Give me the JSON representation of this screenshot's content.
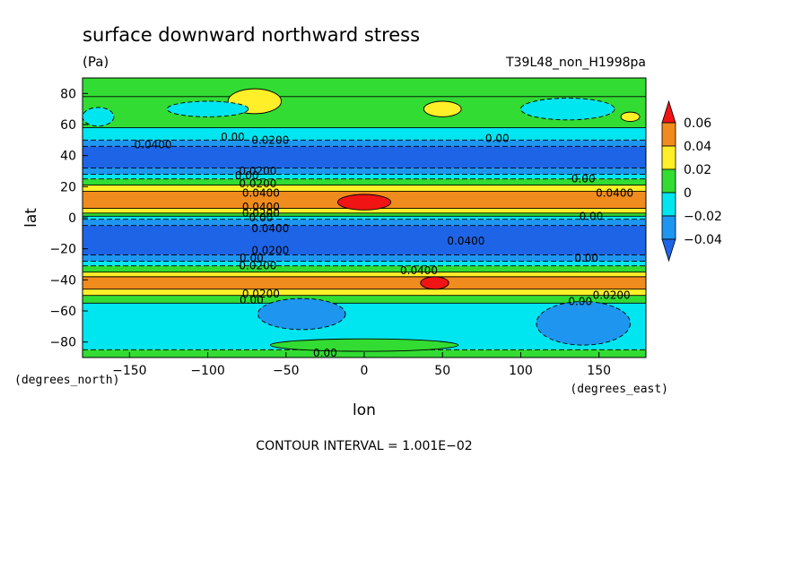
{
  "chart_data": {
    "type": "heatmap",
    "title": "surface downward northward stress",
    "units": "(Pa)",
    "run_label": "T39L48_non_H1998pa",
    "xlabel": "lon",
    "ylabel": "lat",
    "x_units": "(degrees_east)",
    "y_units": "(degrees_north)",
    "xlim": [
      -180,
      180
    ],
    "ylim": [
      -90,
      90
    ],
    "x_ticks": [
      {
        "value": -150,
        "label": "−150"
      },
      {
        "value": -100,
        "label": "−100"
      },
      {
        "value": -50,
        "label": "−50"
      },
      {
        "value": 0,
        "label": "0"
      },
      {
        "value": 50,
        "label": "50"
      },
      {
        "value": 100,
        "label": "100"
      },
      {
        "value": 150,
        "label": "150"
      }
    ],
    "y_ticks": [
      {
        "value": 80,
        "label": "80"
      },
      {
        "value": 60,
        "label": "60"
      },
      {
        "value": 40,
        "label": "40"
      },
      {
        "value": 20,
        "label": "20"
      },
      {
        "value": 0,
        "label": "0"
      },
      {
        "value": -20,
        "label": "−20"
      },
      {
        "value": -40,
        "label": "−40"
      },
      {
        "value": -60,
        "label": "−60"
      },
      {
        "value": -80,
        "label": "−80"
      }
    ],
    "colorbar": {
      "labels": [
        "0.06",
        "0.04",
        "0.02",
        "0",
        "−0.02",
        "−0.04"
      ],
      "bins": [
        {
          "lo": 0.04,
          "hi": 0.06,
          "color": "#f08c1e"
        },
        {
          "lo": 0.02,
          "hi": 0.04,
          "color": "#ffef28"
        },
        {
          "lo": 0.0,
          "hi": 0.02,
          "color": "#32dc32"
        },
        {
          "lo": -0.02,
          "hi": 0.0,
          "color": "#00e6f0"
        },
        {
          "lo": -0.04,
          "hi": -0.02,
          "color": "#1e96f0"
        }
      ],
      "over_color": "#f01414",
      "under_color": "#1e64e6"
    },
    "zonal_bands": [
      {
        "lat_from": 90,
        "lat_to": 78,
        "value": 0.01
      },
      {
        "lat_from": 78,
        "lat_to": 58,
        "value": 0.01
      },
      {
        "lat_from": 58,
        "lat_to": 50,
        "value": -0.01
      },
      {
        "lat_from": 50,
        "lat_to": 46,
        "value": -0.03
      },
      {
        "lat_from": 46,
        "lat_to": 32,
        "value": -0.045
      },
      {
        "lat_from": 32,
        "lat_to": 28,
        "value": -0.03
      },
      {
        "lat_from": 28,
        "lat_to": 25,
        "value": -0.01
      },
      {
        "lat_from": 25,
        "lat_to": 21,
        "value": 0.01
      },
      {
        "lat_from": 21,
        "lat_to": 17,
        "value": 0.03
      },
      {
        "lat_from": 17,
        "lat_to": 6,
        "value": 0.05
      },
      {
        "lat_from": 6,
        "lat_to": 3,
        "value": 0.03
      },
      {
        "lat_from": 3,
        "lat_to": 1,
        "value": 0.01
      },
      {
        "lat_from": 1,
        "lat_to": -1,
        "value": -0.01
      },
      {
        "lat_from": -1,
        "lat_to": -5,
        "value": -0.03
      },
      {
        "lat_from": -5,
        "lat_to": -24,
        "value": -0.045
      },
      {
        "lat_from": -24,
        "lat_to": -28,
        "value": -0.03
      },
      {
        "lat_from": -28,
        "lat_to": -31,
        "value": -0.01
      },
      {
        "lat_from": -31,
        "lat_to": -35,
        "value": 0.01
      },
      {
        "lat_from": -35,
        "lat_to": -38,
        "value": 0.03
      },
      {
        "lat_from": -38,
        "lat_to": -46,
        "value": 0.05
      },
      {
        "lat_from": -46,
        "lat_to": -50,
        "value": 0.03
      },
      {
        "lat_from": -50,
        "lat_to": -55,
        "value": 0.01
      },
      {
        "lat_from": -55,
        "lat_to": -85,
        "value": -0.01
      },
      {
        "lat_from": -85,
        "lat_to": -90,
        "value": 0.01
      }
    ],
    "anomalies": [
      {
        "lon": -70,
        "lat": 75,
        "rlon": 17,
        "rlat": 8,
        "value": 0.03
      },
      {
        "lon": 50,
        "lat": 70,
        "rlon": 12,
        "rlat": 5,
        "value": 0.03
      },
      {
        "lon": 125,
        "lat": 67,
        "rlon": 8,
        "rlat": 3,
        "value": 0.03
      },
      {
        "lon": 170,
        "lat": 65,
        "rlon": 6,
        "rlat": 3,
        "value": 0.03
      },
      {
        "lon": -100,
        "lat": 70,
        "rlon": 26,
        "rlat": 5,
        "value": -0.01
      },
      {
        "lon": 130,
        "lat": 70,
        "rlon": 30,
        "rlat": 7,
        "value": -0.01
      },
      {
        "lon": -170,
        "lat": 65,
        "rlon": 10,
        "rlat": 6,
        "value": -0.01
      },
      {
        "lon": 0,
        "lat": 10,
        "rlon": 17,
        "rlat": 5,
        "value": 0.065
      },
      {
        "lon": 45,
        "lat": -42,
        "rlon": 9,
        "rlat": 4,
        "value": 0.065
      },
      {
        "lon": -40,
        "lat": -62,
        "rlon": 28,
        "rlat": 10,
        "value": -0.03
      },
      {
        "lon": 140,
        "lat": -68,
        "rlon": 30,
        "rlat": 14,
        "value": -0.03
      },
      {
        "lon": 0,
        "lat": -82,
        "rlon": 60,
        "rlat": 4,
        "value": 0.01
      }
    ],
    "contour_labels": [
      {
        "lon": -135,
        "lat": 47,
        "text": "0.0400"
      },
      {
        "lon": -84,
        "lat": 52,
        "text": "0.00"
      },
      {
        "lon": -60,
        "lat": 50,
        "text": "0.0200"
      },
      {
        "lon": 85,
        "lat": 51,
        "text": "0.00"
      },
      {
        "lon": -68,
        "lat": 30,
        "text": "0.0200"
      },
      {
        "lon": -75,
        "lat": 27,
        "text": "0.00"
      },
      {
        "lon": -68,
        "lat": 22,
        "text": "0.0200"
      },
      {
        "lon": -66,
        "lat": 16,
        "text": "0.0400"
      },
      {
        "lon": -66,
        "lat": 7,
        "text": "0.0400"
      },
      {
        "lon": -66,
        "lat": 3,
        "text": "0.0200"
      },
      {
        "lon": -66,
        "lat": 0,
        "text": "0.00"
      },
      {
        "lon": -60,
        "lat": -7,
        "text": "0.0400"
      },
      {
        "lon": 140,
        "lat": 25,
        "text": "0.00"
      },
      {
        "lon": 160,
        "lat": 16,
        "text": "0.0400"
      },
      {
        "lon": 145,
        "lat": 1,
        "text": "0.00"
      },
      {
        "lon": 65,
        "lat": -15,
        "text": "0.0400"
      },
      {
        "lon": -60,
        "lat": -21,
        "text": "0.0200"
      },
      {
        "lon": -72,
        "lat": -26,
        "text": "0.00"
      },
      {
        "lon": -68,
        "lat": -31,
        "text": "0.0200"
      },
      {
        "lon": 35,
        "lat": -34,
        "text": "0.0400"
      },
      {
        "lon": 142,
        "lat": -26,
        "text": "0.00"
      },
      {
        "lon": -66,
        "lat": -49,
        "text": "0.0200"
      },
      {
        "lon": -72,
        "lat": -53,
        "text": "0.00"
      },
      {
        "lon": 158,
        "lat": -50,
        "text": "0.0200"
      },
      {
        "lon": 138,
        "lat": -54,
        "text": "0.00"
      },
      {
        "lon": -25,
        "lat": -87,
        "text": "0.00"
      }
    ],
    "footer": "CONTOUR INTERVAL = 1.001E−02",
    "grid": false
  }
}
